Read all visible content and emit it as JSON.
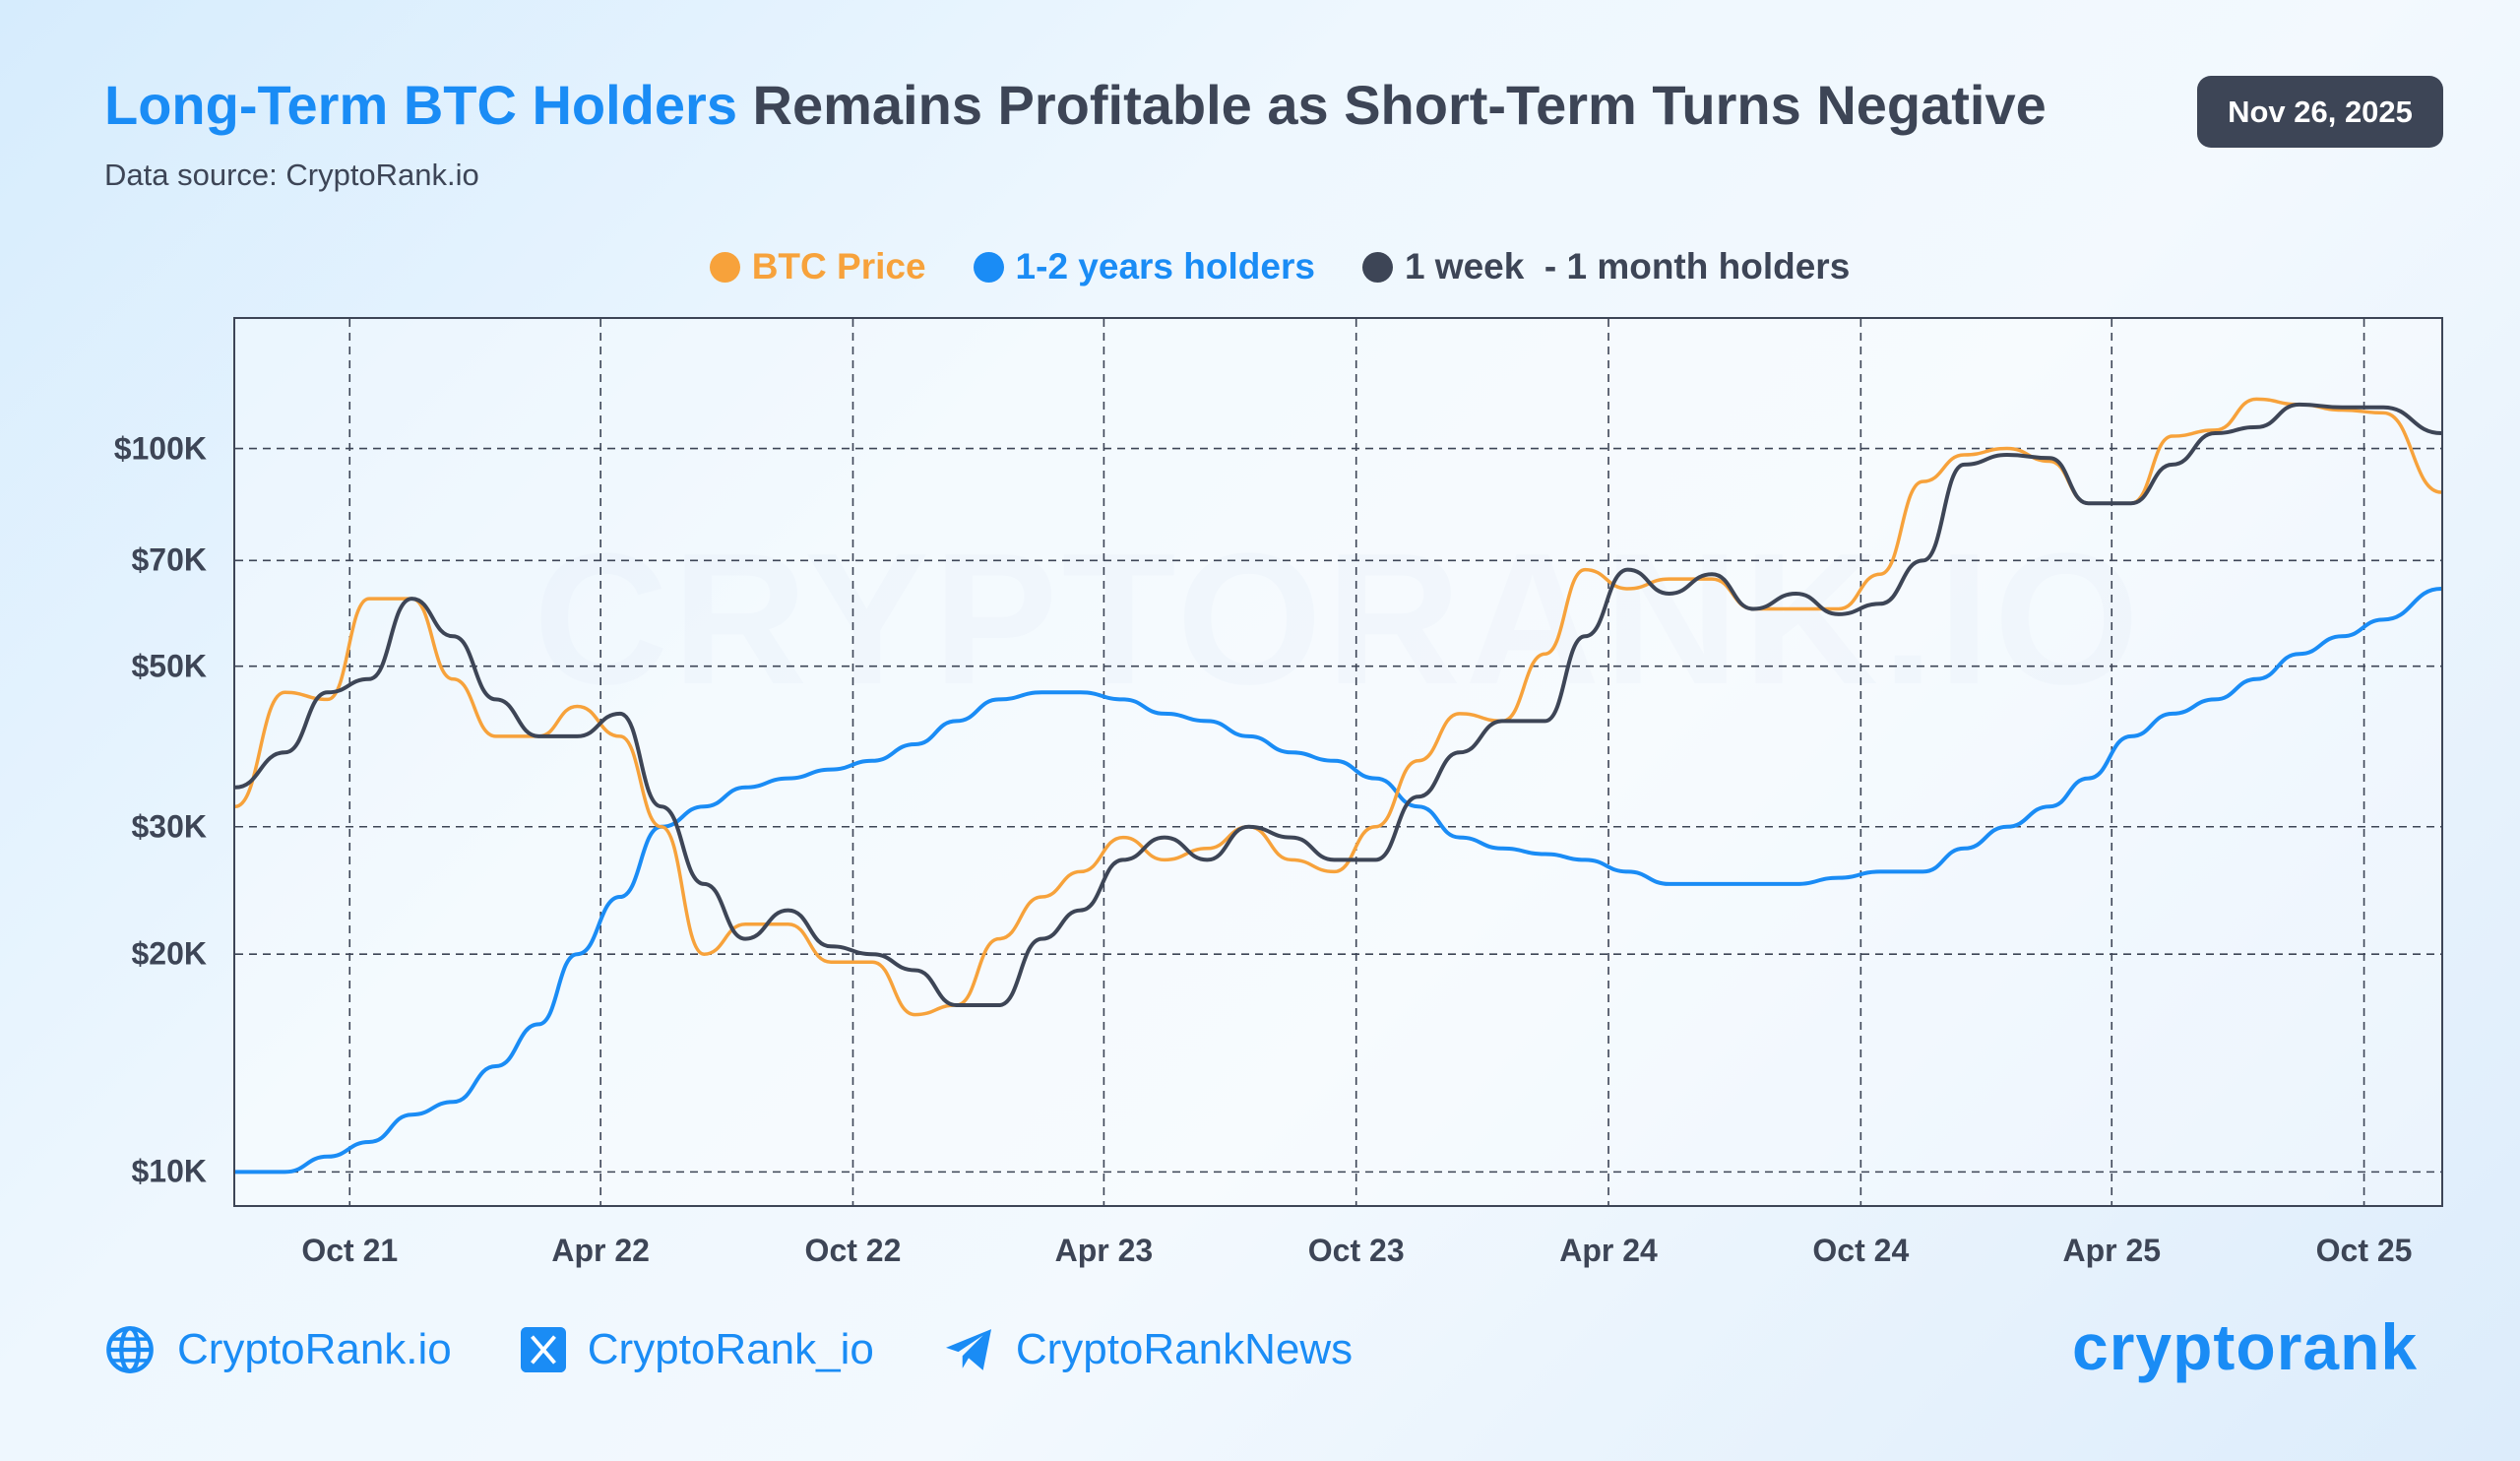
{
  "header": {
    "title_highlight": "Long-Term BTC Holders",
    "title_rest": " Remains Profitable as Short-Term Turns Negative",
    "subtitle": "Data source: CryptoRank.io",
    "date": "Nov 26, 2025"
  },
  "watermark": "CRYPTORANK.IO",
  "footer": {
    "website": "CryptoRank.io",
    "twitter": "CryptoRank_io",
    "telegram": "CryptoRankNews",
    "logo": "cryptorank",
    "icons": [
      "globe-icon",
      "x-icon",
      "telegram-icon"
    ]
  },
  "chart_data": {
    "type": "line",
    "title": "Long-Term BTC Holders Remains Profitable as Short-Term Turns Negative",
    "yscale": "log",
    "ylim": [
      9000,
      151000
    ],
    "grid": true,
    "legend_position": "top",
    "yticks": [
      {
        "value": 10000,
        "label": "$10K"
      },
      {
        "value": 20000,
        "label": "$20K"
      },
      {
        "value": 30000,
        "label": "$30K"
      },
      {
        "value": 50000,
        "label": "$50K"
      },
      {
        "value": 70000,
        "label": "$70K"
      },
      {
        "value": 100000,
        "label": "$100K"
      }
    ],
    "xticks": [
      {
        "date": "2021-10-01",
        "label": "Oct 21"
      },
      {
        "date": "2022-04-01",
        "label": "Apr 22"
      },
      {
        "date": "2022-10-01",
        "label": "Oct 22"
      },
      {
        "date": "2023-04-01",
        "label": "Apr 23"
      },
      {
        "date": "2023-10-01",
        "label": "Oct 23"
      },
      {
        "date": "2024-04-01",
        "label": "Apr 24"
      },
      {
        "date": "2024-10-01",
        "label": "Oct 24"
      },
      {
        "date": "2025-04-01",
        "label": "Apr 25"
      },
      {
        "date": "2025-10-01",
        "label": "Oct 25"
      }
    ],
    "xlim": [
      "2021-07-10",
      "2025-11-26"
    ],
    "x": [
      "2021-07",
      "2021-08",
      "2021-09",
      "2021-10",
      "2021-11",
      "2021-12",
      "2022-01",
      "2022-02",
      "2022-03",
      "2022-04",
      "2022-05",
      "2022-06",
      "2022-07",
      "2022-08",
      "2022-09",
      "2022-10",
      "2022-11",
      "2022-12",
      "2023-01",
      "2023-02",
      "2023-03",
      "2023-04",
      "2023-05",
      "2023-06",
      "2023-07",
      "2023-08",
      "2023-09",
      "2023-10",
      "2023-11",
      "2023-12",
      "2024-01",
      "2024-02",
      "2024-03",
      "2024-04",
      "2024-05",
      "2024-06",
      "2024-07",
      "2024-08",
      "2024-09",
      "2024-10",
      "2024-11",
      "2024-12",
      "2025-01",
      "2025-02",
      "2025-03",
      "2025-04",
      "2025-05",
      "2025-06",
      "2025-07",
      "2025-08",
      "2025-09",
      "2025-10",
      "2025-11"
    ],
    "series": [
      {
        "name": "BTC Price",
        "color": "#f7a23b",
        "values": [
          32000,
          46000,
          45000,
          62000,
          62000,
          48000,
          40000,
          40000,
          44000,
          40000,
          30000,
          20000,
          22000,
          22000,
          19500,
          19500,
          16500,
          17000,
          21000,
          24000,
          26000,
          29000,
          27000,
          28000,
          30000,
          27000,
          26000,
          30000,
          37000,
          43000,
          42000,
          52000,
          68000,
          64000,
          66000,
          66000,
          60000,
          60000,
          60000,
          67000,
          90000,
          98000,
          100000,
          96000,
          84000,
          84000,
          104000,
          106000,
          117000,
          115000,
          113000,
          112000,
          87000
        ]
      },
      {
        "name": "1-2 years holders",
        "color": "#1a8cf5",
        "values": [
          10000,
          10000,
          10500,
          11000,
          12000,
          12500,
          14000,
          16000,
          20000,
          24000,
          30000,
          32000,
          34000,
          35000,
          36000,
          37000,
          39000,
          42000,
          45000,
          46000,
          46000,
          45000,
          43000,
          42000,
          40000,
          38000,
          37000,
          35000,
          32000,
          29000,
          28000,
          27500,
          27000,
          26000,
          25000,
          25000,
          25000,
          25000,
          25500,
          26000,
          26000,
          28000,
          30000,
          32000,
          35000,
          40000,
          43000,
          45000,
          48000,
          52000,
          55000,
          58000,
          64000
        ]
      },
      {
        "name": "1 week  - 1 month holders",
        "color": "#3d4556",
        "values": [
          34000,
          38000,
          46000,
          48000,
          62000,
          55000,
          45000,
          40000,
          40000,
          43000,
          32000,
          25000,
          21000,
          23000,
          20500,
          20000,
          19000,
          17000,
          17000,
          21000,
          23000,
          27000,
          29000,
          27000,
          30000,
          29000,
          27000,
          27000,
          33000,
          38000,
          42000,
          42000,
          55000,
          68000,
          63000,
          67000,
          60000,
          63000,
          59000,
          61000,
          70000,
          95000,
          98000,
          97000,
          84000,
          84000,
          95000,
          105000,
          107000,
          115000,
          114000,
          114000,
          105000
        ]
      }
    ]
  }
}
